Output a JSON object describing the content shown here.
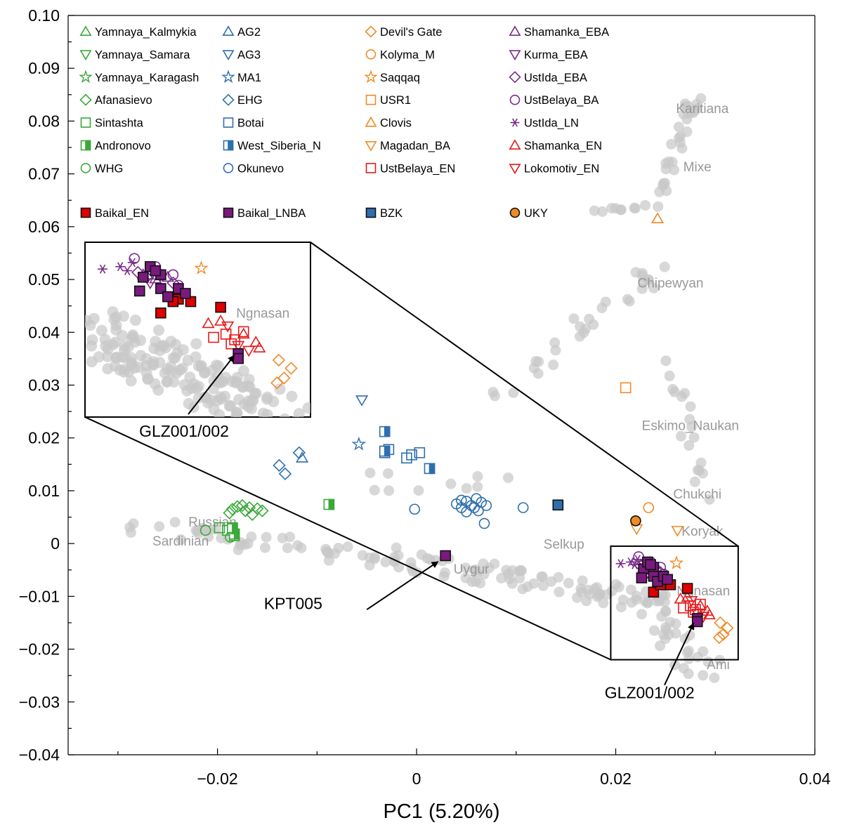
{
  "chart_data": {
    "type": "scatter",
    "xlabel": "PC1 (5.20%)",
    "ylabel": "",
    "xlim": [
      -0.035,
      0.04
    ],
    "ylim": [
      -0.04,
      0.1
    ],
    "xticks": [
      {
        "v": -0.02,
        "label": "−0.02"
      },
      {
        "v": 0,
        "label": "0"
      },
      {
        "v": 0.02,
        "label": "0.02"
      },
      {
        "v": 0.04,
        "label": "0.04"
      }
    ],
    "yticks": [
      {
        "v": 0.1,
        "label": "0.10"
      },
      {
        "v": 0.09,
        "label": "0.09"
      },
      {
        "v": 0.08,
        "label": "0.08"
      },
      {
        "v": 0.07,
        "label": "0.07"
      },
      {
        "v": 0.06,
        "label": "0.06"
      },
      {
        "v": 0.05,
        "label": "0.05"
      },
      {
        "v": 0.04,
        "label": "0.04"
      },
      {
        "v": 0.03,
        "label": "0.03"
      },
      {
        "v": 0.02,
        "label": "0.02"
      },
      {
        "v": 0.01,
        "label": "0.01"
      },
      {
        "v": 0,
        "label": "0"
      },
      {
        "v": -0.01,
        "label": "−0.01"
      },
      {
        "v": -0.02,
        "label": "−0.02"
      },
      {
        "v": -0.03,
        "label": "−0.03"
      },
      {
        "v": -0.04,
        "label": "−0.04"
      }
    ],
    "background_color": "#c8c8c8",
    "background_clusters": [
      {
        "type": "line",
        "from": [
          -0.028,
          0.003
        ],
        "to": [
          0.002,
          -0.004
        ],
        "n": 55,
        "spread": 0.004
      },
      {
        "type": "line",
        "from": [
          0.002,
          -0.004
        ],
        "to": [
          0.024,
          -0.011
        ],
        "n": 70,
        "spread": 0.004
      },
      {
        "type": "line",
        "from": [
          0.024,
          -0.012
        ],
        "to": [
          0.029,
          -0.025
        ],
        "n": 30,
        "spread": 0.004
      },
      {
        "type": "line",
        "from": [
          0.008,
          0.028
        ],
        "to": [
          0.019,
          0.045
        ],
        "n": 18,
        "spread": 0.003
      },
      {
        "type": "line",
        "from": [
          0.019,
          0.045
        ],
        "to": [
          0.025,
          0.052
        ],
        "n": 12,
        "spread": 0.003
      },
      {
        "type": "line",
        "from": [
          0.018,
          0.063
        ],
        "to": [
          0.024,
          0.064
        ],
        "n": 10,
        "spread": 0.001
      },
      {
        "type": "line",
        "from": [
          0.024,
          0.065
        ],
        "to": [
          0.028,
          0.084
        ],
        "n": 28,
        "spread": 0.0015
      },
      {
        "type": "line",
        "from": [
          0.026,
          0.035
        ],
        "to": [
          0.029,
          0.005
        ],
        "n": 18,
        "spread": 0.002
      },
      {
        "type": "line",
        "from": [
          -0.006,
          0.013
        ],
        "to": [
          0.01,
          0.012
        ],
        "n": 10,
        "spread": 0.006
      }
    ],
    "background_labels": [
      {
        "text": "Karitiana",
        "x": 0.0287,
        "y": 0.0815
      },
      {
        "text": "Mixe",
        "x": 0.0282,
        "y": 0.0705
      },
      {
        "text": "Chipewyan",
        "x": 0.0255,
        "y": 0.0485
      },
      {
        "text": "Eskimo_Naukan",
        "x": 0.0275,
        "y": 0.0215
      },
      {
        "text": "Chukchi",
        "x": 0.0282,
        "y": 0.0085
      },
      {
        "text": "Koryak",
        "x": 0.0287,
        "y": 0.0015
      },
      {
        "text": "Ngnasan",
        "x": 0.0288,
        "y": -0.0098
      },
      {
        "text": "Ami",
        "x": 0.0303,
        "y": -0.0238
      },
      {
        "text": "Selkup",
        "x": 0.0148,
        "y": -0.001
      },
      {
        "text": "Uygur",
        "x": 0.0055,
        "y": -0.0057
      },
      {
        "text": "Russian",
        "x": -0.0205,
        "y": 0.0032
      },
      {
        "text": "Sardinian",
        "x": -0.0237,
        "y": -0.0004
      }
    ],
    "series": [
      {
        "name": "Yamnaya_Kalmykia",
        "marker": "triangle-up",
        "color": "#3aa83a",
        "fill": "none",
        "points": []
      },
      {
        "name": "Yamnaya_Samara",
        "marker": "triangle-down",
        "color": "#3aa83a",
        "fill": "none",
        "points": []
      },
      {
        "name": "Yamnaya_Karagash",
        "marker": "star",
        "color": "#3aa83a",
        "fill": "none",
        "points": []
      },
      {
        "name": "Afanasievo",
        "marker": "diamond",
        "color": "#3aa83a",
        "fill": "none",
        "points": [
          [
            -0.0185,
            0.0065
          ],
          [
            -0.018,
            0.007
          ],
          [
            -0.0175,
            0.0072
          ],
          [
            -0.0172,
            0.0062
          ],
          [
            -0.0168,
            0.0068
          ],
          [
            -0.016,
            0.0066
          ],
          [
            -0.0188,
            0.0058
          ],
          [
            -0.0165,
            0.0055
          ],
          [
            -0.0155,
            0.0062
          ]
        ]
      },
      {
        "name": "Sintashta",
        "marker": "square",
        "color": "#3aa83a",
        "fill": "none",
        "points": [
          [
            -0.0198,
            0.003
          ],
          [
            -0.019,
            0.0025
          ],
          [
            -0.0185,
            0.003
          ],
          [
            -0.0183,
            0.0015
          ]
        ]
      },
      {
        "name": "Andronovo",
        "marker": "half-square",
        "color": "#3aa83a",
        "fill": "none",
        "points": [
          [
            -0.0088,
            0.0074
          ],
          [
            -0.0183,
            0.0018
          ],
          [
            -0.0185,
            0.0028
          ]
        ]
      },
      {
        "name": "WHG",
        "marker": "circle",
        "color": "#3aa83a",
        "fill": "none",
        "points": [
          [
            -0.0212,
            0.0025
          ],
          [
            -0.0187,
            0.0012
          ]
        ]
      },
      {
        "name": "AG2",
        "marker": "triangle-up",
        "color": "#2e6fae",
        "fill": "none",
        "points": [
          [
            -0.0115,
            0.0162
          ]
        ]
      },
      {
        "name": "AG3",
        "marker": "triangle-down",
        "color": "#2e6fae",
        "fill": "none",
        "points": [
          [
            -0.0055,
            0.0272
          ]
        ]
      },
      {
        "name": "MA1",
        "marker": "star",
        "color": "#2e6fae",
        "fill": "none",
        "points": [
          [
            -0.0058,
            0.0188
          ]
        ]
      },
      {
        "name": "EHG",
        "marker": "diamond",
        "color": "#2e6fae",
        "fill": "none",
        "points": [
          [
            -0.0118,
            0.0172
          ],
          [
            -0.0138,
            0.0148
          ],
          [
            -0.0132,
            0.0132
          ]
        ]
      },
      {
        "name": "Botai",
        "marker": "square",
        "color": "#2e6fae",
        "fill": "none",
        "points": [
          [
            -0.0028,
            0.0178
          ],
          [
            -0.0032,
            0.0172
          ],
          [
            -0.001,
            0.0162
          ],
          [
            -0.0005,
            0.0168
          ],
          [
            0.0003,
            0.0172
          ]
        ]
      },
      {
        "name": "West_Siberia_N",
        "marker": "half-square",
        "color": "#2e6fae",
        "fill": "none",
        "points": [
          [
            -0.0032,
            0.0212
          ],
          [
            -0.0032,
            0.0175
          ],
          [
            0.0013,
            0.0142
          ]
        ]
      },
      {
        "name": "Okunevo",
        "marker": "circle",
        "color": "#2e6fae",
        "fill": "none",
        "points": [
          [
            -0.0002,
            0.0065
          ],
          [
            0.004,
            0.0075
          ],
          [
            0.0045,
            0.0068
          ],
          [
            0.005,
            0.008
          ],
          [
            0.0055,
            0.0072
          ],
          [
            0.006,
            0.0085
          ],
          [
            0.0065,
            0.0078
          ],
          [
            0.0058,
            0.0068
          ],
          [
            0.005,
            0.006
          ],
          [
            0.0045,
            0.0082
          ],
          [
            0.0062,
            0.0062
          ],
          [
            0.007,
            0.0072
          ],
          [
            0.0068,
            0.0038
          ],
          [
            0.0107,
            0.0068
          ]
        ]
      },
      {
        "name": "Devil's Gate",
        "marker": "diamond",
        "color": "#f08a24",
        "fill": "none",
        "points": [
          [
            0.0304,
            -0.0178
          ],
          [
            0.0308,
            -0.0172
          ],
          [
            0.0312,
            -0.016
          ],
          [
            0.0305,
            -0.015
          ]
        ]
      },
      {
        "name": "Kolyma_M",
        "marker": "circle",
        "color": "#f08a24",
        "fill": "none",
        "points": [
          [
            0.0233,
            0.0068
          ]
        ]
      },
      {
        "name": "Saqqaq",
        "marker": "star",
        "color": "#f08a24",
        "fill": "none",
        "points": [
          [
            0.0261,
            -0.0037
          ]
        ]
      },
      {
        "name": "USR1",
        "marker": "square",
        "color": "#f08a24",
        "fill": "none",
        "points": [
          [
            0.021,
            0.0295
          ]
        ]
      },
      {
        "name": "Clovis",
        "marker": "triangle-up",
        "color": "#f08a24",
        "fill": "none",
        "points": [
          [
            0.0242,
            0.0615
          ]
        ]
      },
      {
        "name": "Magadan_BA",
        "marker": "triangle-down",
        "color": "#f08a24",
        "fill": "none",
        "points": [
          [
            0.0221,
            0.0028
          ],
          [
            0.0262,
            0.0025
          ]
        ]
      },
      {
        "name": "UstBelaya_EN",
        "marker": "square",
        "color": "#e41a1c",
        "fill": "none",
        "points": [
          [
            0.0268,
            -0.0122
          ],
          [
            0.0275,
            -0.0118
          ],
          [
            0.028,
            -0.0125
          ],
          [
            0.0285,
            -0.0115
          ],
          [
            0.0278,
            -0.013
          ]
        ]
      },
      {
        "name": "Shamanka_EBA",
        "marker": "triangle-up",
        "color": "#7b2a8c",
        "fill": "none",
        "points": [
          [
            0.0228,
            -0.0045
          ],
          [
            0.0235,
            -0.005
          ],
          [
            0.0242,
            -0.0048
          ]
        ]
      },
      {
        "name": "Kurma_EBA",
        "marker": "triangle-down",
        "color": "#7b2a8c",
        "fill": "none",
        "points": [
          [
            0.0232,
            -0.0055
          ]
        ]
      },
      {
        "name": "UstIda_EBA",
        "marker": "diamond",
        "color": "#7b2a8c",
        "fill": "none",
        "points": [
          [
            0.0225,
            -0.0042
          ],
          [
            0.023,
            -0.0048
          ],
          [
            0.0238,
            -0.0045
          ],
          [
            0.0245,
            -0.0055
          ]
        ]
      },
      {
        "name": "UstBelaya_BA",
        "marker": "circle",
        "color": "#7b2a8c",
        "fill": "none",
        "points": [
          [
            0.0223,
            -0.0025
          ],
          [
            0.0235,
            -0.0035
          ],
          [
            0.0245,
            -0.0045
          ],
          [
            0.0248,
            -0.0058
          ]
        ]
      },
      {
        "name": "UstIda_LN",
        "marker": "asterisk",
        "color": "#7b2a8c",
        "fill": "none",
        "points": [
          [
            0.0205,
            -0.0038
          ],
          [
            0.0215,
            -0.0035
          ],
          [
            0.0219,
            -0.004
          ],
          [
            0.0222,
            -0.003
          ]
        ]
      },
      {
        "name": "Shamanka_EN",
        "marker": "triangle-up",
        "color": "#e41a1c",
        "fill": "none",
        "points": [
          [
            0.0265,
            -0.0105
          ],
          [
            0.0272,
            -0.0102
          ],
          [
            0.0285,
            -0.0118
          ],
          [
            0.0292,
            -0.0128
          ],
          [
            0.0294,
            -0.0135
          ]
        ]
      },
      {
        "name": "Lokomotiv_EN",
        "marker": "triangle-down",
        "color": "#e41a1c",
        "fill": "none",
        "points": [
          [
            0.0276,
            -0.0108
          ],
          [
            0.0282,
            -0.0132
          ],
          [
            0.0288,
            -0.0138
          ]
        ]
      },
      {
        "name": "Baikal_EN",
        "marker": "square",
        "color": "#111111",
        "fill": "#e00000",
        "points": [
          [
            0.0238,
            -0.0092
          ],
          [
            0.0248,
            -0.0075
          ],
          [
            0.0255,
            -0.0078
          ],
          [
            0.0272,
            -0.0085
          ],
          [
            0.0245,
            -0.0078
          ]
        ]
      },
      {
        "name": "Baikal_LNBA",
        "marker": "square",
        "color": "#111111",
        "fill": "#7a1a7e",
        "points": [
          [
            0.0228,
            -0.0048
          ],
          [
            0.0232,
            -0.0035
          ],
          [
            0.0238,
            -0.0045
          ],
          [
            0.0226,
            -0.0065
          ],
          [
            0.0238,
            -0.0062
          ],
          [
            0.0242,
            -0.0072
          ],
          [
            0.0248,
            -0.0062
          ],
          [
            0.0252,
            -0.0068
          ],
          [
            0.0235,
            -0.004
          ],
          [
            0.0282,
            -0.0142
          ],
          [
            0.0282,
            -0.0148
          ],
          [
            0.0029,
            -0.0023
          ]
        ]
      },
      {
        "name": "BZK",
        "marker": "square",
        "color": "#111111",
        "fill": "#2e6fae",
        "points": [
          [
            0.0142,
            0.0073
          ]
        ]
      },
      {
        "name": "UKY",
        "marker": "circle",
        "color": "#111111",
        "fill": "#f08a24",
        "points": [
          [
            0.022,
            0.0043
          ]
        ]
      }
    ],
    "inset": {
      "source_box": {
        "x0": 0.0195,
        "x1": 0.0323,
        "y0": -0.022,
        "y1": -0.0005
      },
      "connector_from": [
        [
          0.0323,
          -0.0005
        ],
        [
          0.0195,
          -0.022
        ]
      ],
      "connector_to": [
        [
          -0.0107,
          0.0573
        ],
        [
          -0.0335,
          0.024
        ]
      ]
    },
    "annotations": [
      {
        "text": "KPT005",
        "text_at": [
          -0.0124,
          -0.0124
        ],
        "arrow_from": [
          -0.005,
          -0.0125
        ],
        "arrow_to": [
          0.0021,
          -0.0035
        ]
      },
      {
        "text": "GLZ001/002",
        "text_at": [
          0.0234,
          -0.0293
        ],
        "arrow_from": [
          0.0249,
          -0.0268
        ],
        "arrow_to": [
          0.0278,
          -0.0152
        ]
      }
    ],
    "inset_annotation": {
      "text": "GLZ001/002"
    }
  }
}
